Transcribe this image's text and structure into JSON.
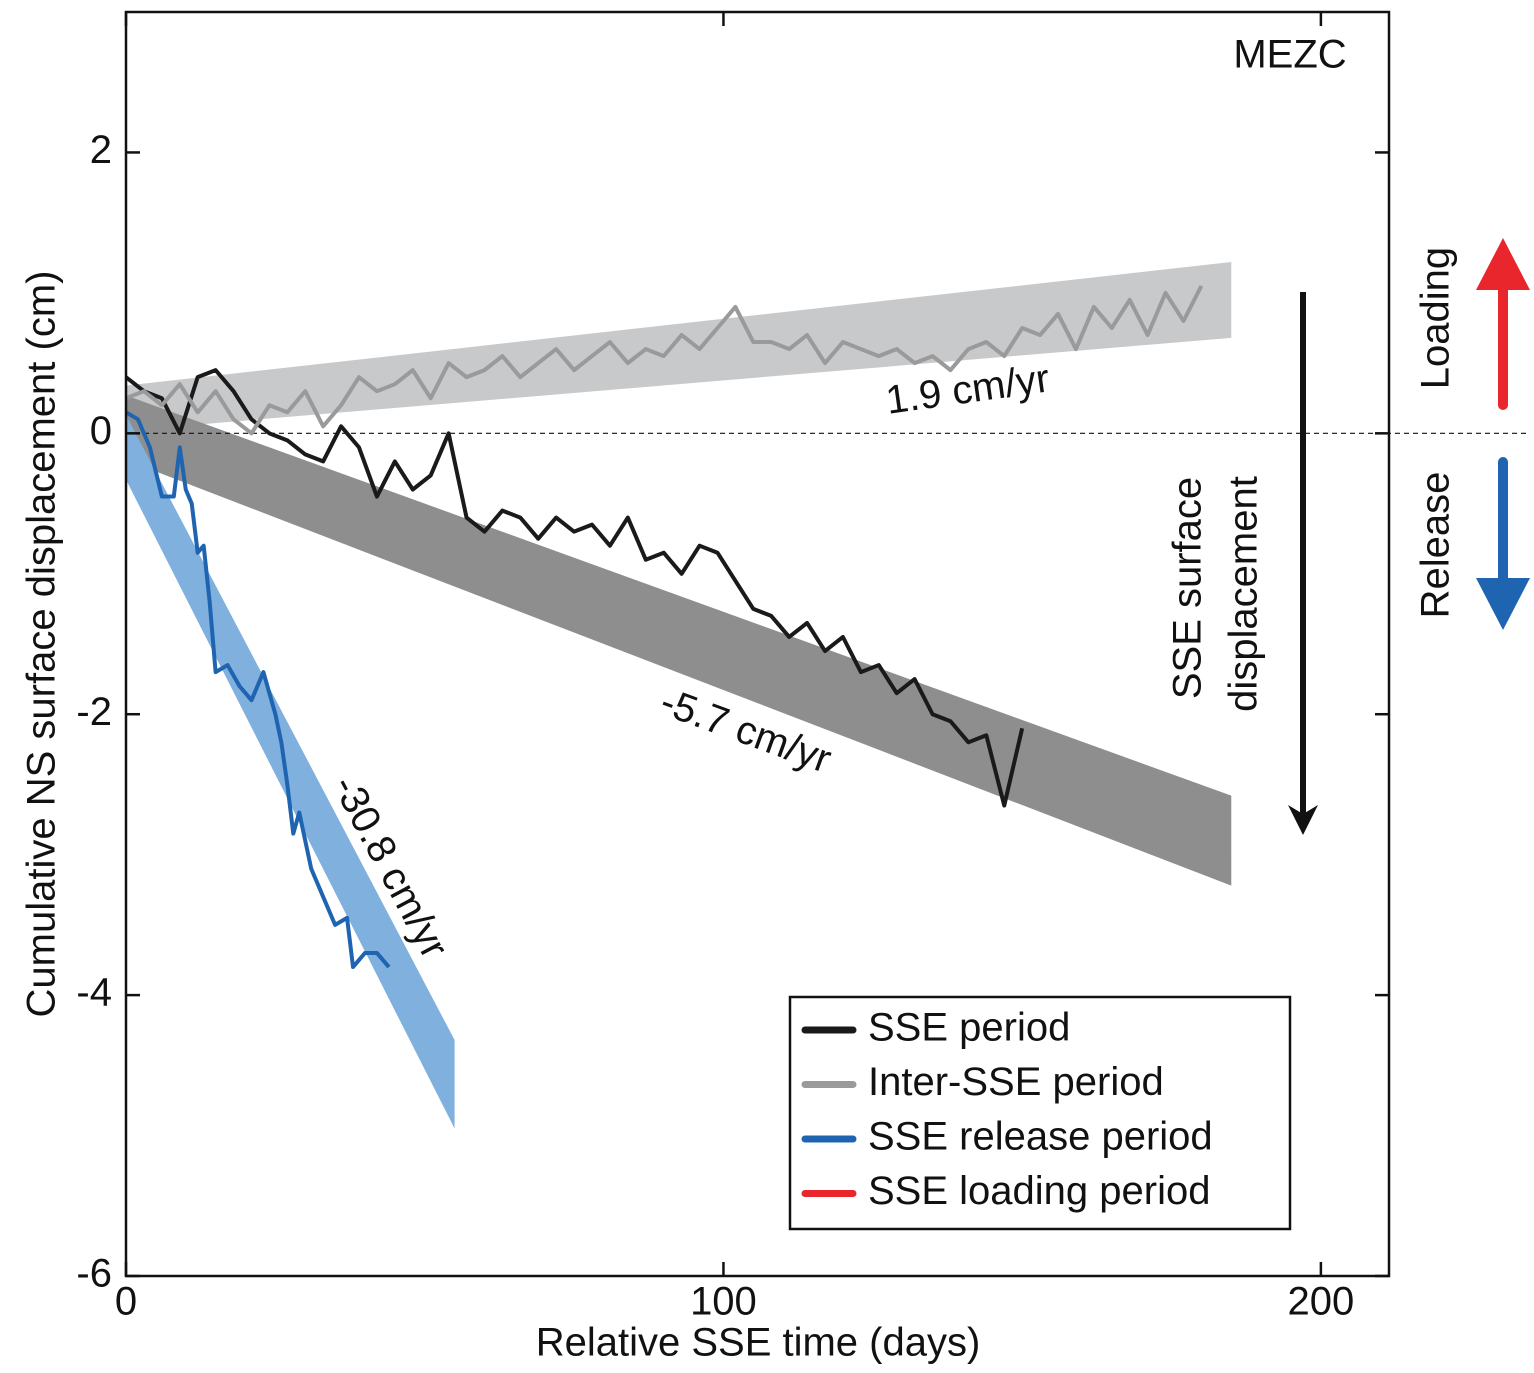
{
  "chart_data": {
    "type": "line",
    "xlabel": "Relative SSE time (days)",
    "ylabel": "Cumulative NS surface displacement (cm)",
    "station": "MEZC",
    "xlim": [
      0,
      211.4
    ],
    "xticks": [
      0,
      100,
      200
    ],
    "ylim": [
      -6,
      3
    ],
    "yticks": [
      -6,
      -4,
      -2,
      0,
      2
    ],
    "zero_line": true,
    "legend": "lower right",
    "bands": [
      {
        "x": [
          0,
          185
        ],
        "lower": [
          0.02,
          0.68
        ],
        "upper": [
          0.34,
          1.22
        ],
        "color": "#c8c9cb"
      },
      {
        "x": [
          0,
          185
        ],
        "lower": [
          -0.19,
          -3.22
        ],
        "upper": [
          0.27,
          -2.58
        ],
        "color": "#8f8e8e"
      },
      {
        "x": [
          0,
          55
        ],
        "lower": [
          -0.33,
          -4.95
        ],
        "upper": [
          0.13,
          -4.32
        ],
        "color": "#7fb0de"
      }
    ],
    "rate_labels": [
      "1.9 cm/yr",
      "-5.7 cm/yr",
      "-30.8 cm/yr"
    ],
    "side_labels": [
      "Loading",
      "Release",
      "SSE surface",
      "displacement"
    ],
    "series": [
      {
        "name": "SSE period",
        "color": "#1a1a1a",
        "x": [
          0,
          3,
          6,
          9,
          12,
          15,
          18,
          21,
          24,
          27,
          30,
          33,
          36,
          39,
          42,
          45,
          48,
          51,
          54,
          57,
          60,
          63,
          66,
          69,
          72,
          75,
          78,
          81,
          84,
          87,
          90,
          93,
          96,
          99,
          102,
          105,
          108,
          111,
          114,
          117,
          120,
          123,
          126,
          129,
          132,
          135,
          138,
          141,
          144,
          147,
          150
        ],
        "values": [
          0.4,
          0.3,
          0.25,
          0.0,
          0.4,
          0.45,
          0.3,
          0.1,
          0.0,
          -0.05,
          -0.15,
          -0.2,
          0.05,
          -0.1,
          -0.45,
          -0.2,
          -0.4,
          -0.3,
          0.0,
          -0.6,
          -0.7,
          -0.55,
          -0.6,
          -0.75,
          -0.6,
          -0.7,
          -0.65,
          -0.8,
          -0.6,
          -0.9,
          -0.85,
          -1.0,
          -0.8,
          -0.85,
          -1.05,
          -1.25,
          -1.3,
          -1.45,
          -1.35,
          -1.55,
          -1.45,
          -1.7,
          -1.65,
          -1.85,
          -1.75,
          -2.0,
          -2.05,
          -2.2,
          -2.15,
          -2.65,
          -2.1
        ]
      },
      {
        "name": "Inter-SSE period",
        "color": "#9a9a9a",
        "x": [
          0,
          3,
          6,
          9,
          12,
          15,
          18,
          21,
          24,
          27,
          30,
          33,
          36,
          39,
          42,
          45,
          48,
          51,
          54,
          57,
          60,
          63,
          66,
          69,
          72,
          75,
          78,
          81,
          84,
          87,
          90,
          93,
          96,
          99,
          102,
          105,
          108,
          111,
          114,
          117,
          120,
          123,
          126,
          129,
          132,
          135,
          138,
          141,
          144,
          147,
          150,
          153,
          156,
          159,
          162,
          165,
          168,
          171,
          174,
          177,
          180
        ],
        "values": [
          0.25,
          0.3,
          0.2,
          0.35,
          0.15,
          0.3,
          0.1,
          0.0,
          0.2,
          0.15,
          0.3,
          0.05,
          0.2,
          0.4,
          0.3,
          0.35,
          0.45,
          0.25,
          0.5,
          0.4,
          0.45,
          0.55,
          0.4,
          0.5,
          0.6,
          0.45,
          0.55,
          0.65,
          0.5,
          0.6,
          0.55,
          0.7,
          0.6,
          0.75,
          0.9,
          0.65,
          0.65,
          0.6,
          0.7,
          0.5,
          0.65,
          0.6,
          0.55,
          0.6,
          0.5,
          0.55,
          0.45,
          0.6,
          0.65,
          0.55,
          0.75,
          0.7,
          0.85,
          0.6,
          0.9,
          0.75,
          0.95,
          0.7,
          1.0,
          0.8,
          1.05
        ]
      },
      {
        "name": "SSE release period",
        "color": "#1f64b0",
        "x": [
          0,
          2,
          4,
          6,
          8,
          9,
          10,
          11,
          12,
          13,
          14,
          15,
          17,
          19,
          21,
          23,
          24,
          25,
          26,
          27,
          28,
          29,
          31,
          33,
          35,
          37,
          38,
          40,
          42,
          44
        ],
        "values": [
          0.15,
          0.1,
          -0.1,
          -0.45,
          -0.45,
          -0.1,
          -0.4,
          -0.5,
          -0.85,
          -0.8,
          -1.2,
          -1.7,
          -1.65,
          -1.8,
          -1.9,
          -1.7,
          -1.85,
          -2.0,
          -2.2,
          -2.5,
          -2.85,
          -2.7,
          -3.1,
          -3.3,
          -3.5,
          -3.45,
          -3.8,
          -3.7,
          -3.7,
          -3.8
        ]
      },
      {
        "name": "SSE loading period",
        "color": "#e8262b",
        "x": [],
        "values": []
      }
    ]
  }
}
